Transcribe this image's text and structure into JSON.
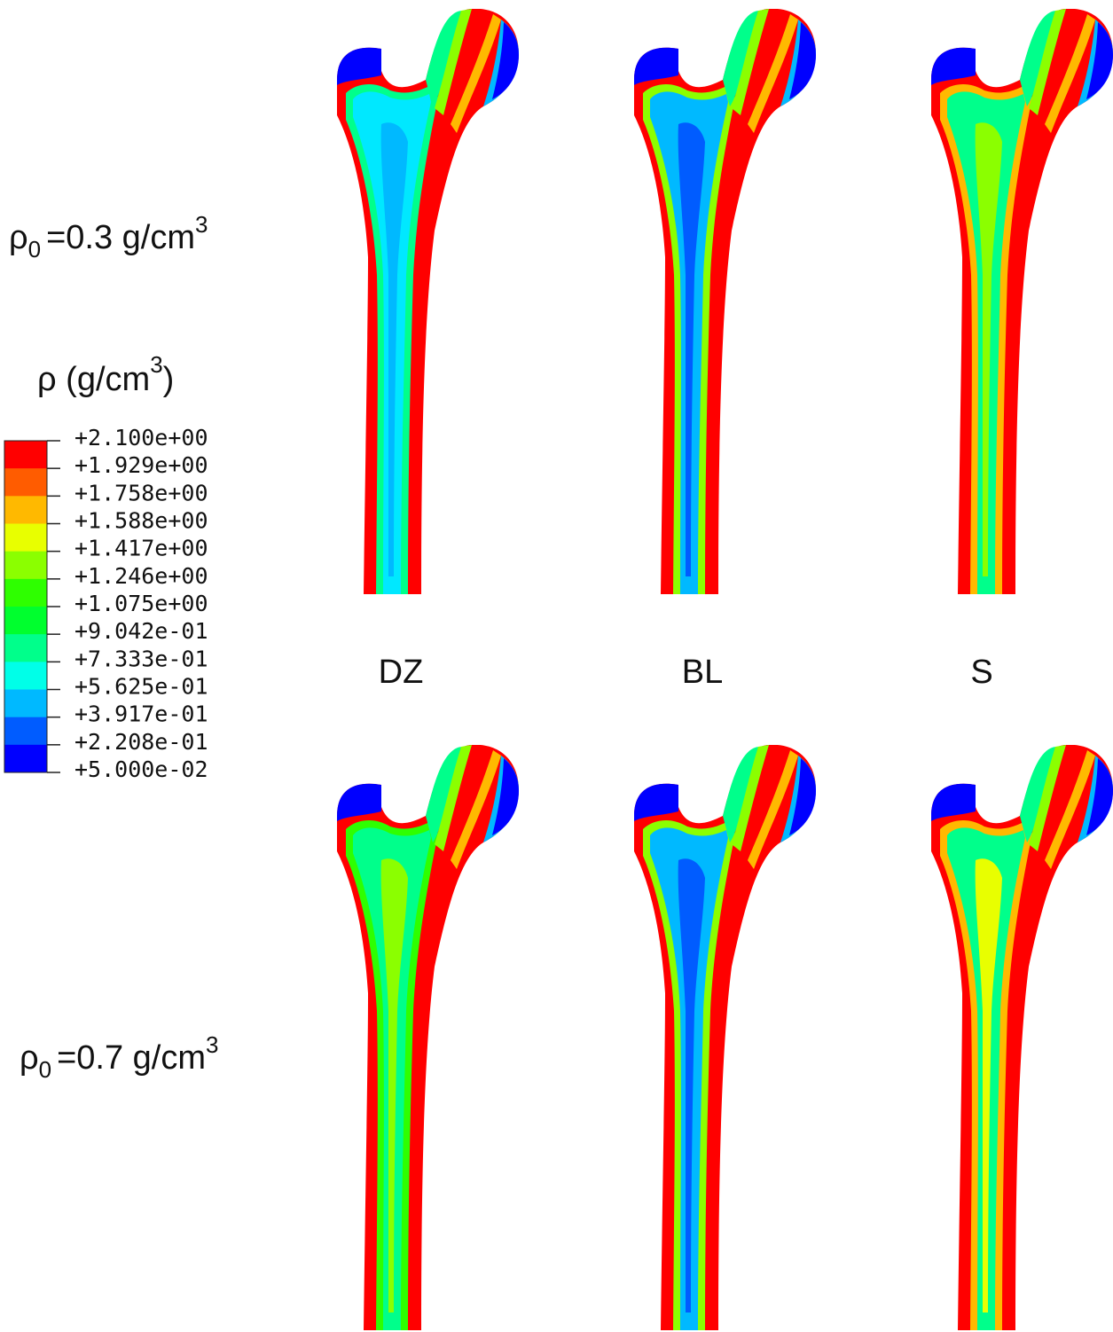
{
  "row_labels": [
    {
      "symbol": "ρ",
      "subscript": "0",
      "text": "=0.3 g/cm",
      "superscript": "3"
    },
    {
      "symbol": "ρ",
      "subscript": "0",
      "text": "=0.7 g/cm",
      "superscript": "3"
    }
  ],
  "column_labels": [
    "DZ",
    "BL",
    "S"
  ],
  "legend": {
    "title": "ρ (g/cm",
    "title_superscript": "3",
    "title_end": ")",
    "ticks": [
      "+2.100e+00",
      "+1.929e+00",
      "+1.758e+00",
      "+1.588e+00",
      "+1.417e+00",
      "+1.246e+00",
      "+1.075e+00",
      "+9.042e-01",
      "+7.333e-01",
      "+5.625e-01",
      "+3.917e-01",
      "+2.208e-01",
      "+5.000e-02"
    ],
    "colors": [
      "#ff0000",
      "#ff5c00",
      "#ffb900",
      "#e8ff00",
      "#8bff00",
      "#2eff00",
      "#00ff2e",
      "#00ff8b",
      "#00ffe8",
      "#00b9ff",
      "#005cff",
      "#0000ff"
    ]
  }
}
